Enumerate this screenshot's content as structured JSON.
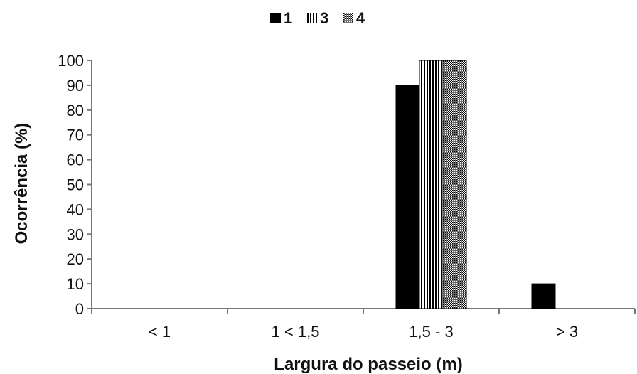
{
  "chart_data": {
    "type": "bar",
    "categories": [
      "< 1",
      "1 < 1,5",
      "1,5 - 3",
      "> 3"
    ],
    "series": [
      {
        "name": "1",
        "values": [
          0,
          0,
          90,
          10
        ],
        "pattern": "solid"
      },
      {
        "name": "3",
        "values": [
          0,
          0,
          100,
          0
        ],
        "pattern": "vertical-stripes"
      },
      {
        "name": "4",
        "values": [
          0,
          0,
          100,
          0
        ],
        "pattern": "dots"
      }
    ],
    "xlabel": "Largura do passeio (m)",
    "ylabel": "Ocorrência (%)",
    "ylim": [
      0,
      100
    ],
    "yticks": [
      0,
      10,
      20,
      30,
      40,
      50,
      60,
      70,
      80,
      90,
      100
    ],
    "grid": false,
    "legend_position": "top-center",
    "colors": {
      "bar": "#000000",
      "axis": "#777777",
      "text": "#111111"
    }
  }
}
